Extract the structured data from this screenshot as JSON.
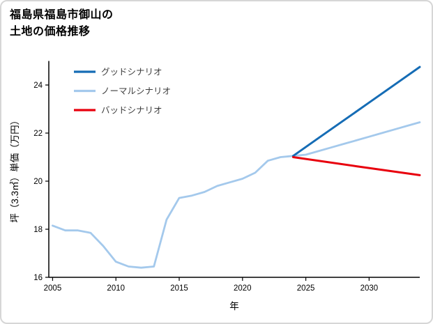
{
  "figure": {
    "title_line1": "福島県福島市御山の",
    "title_line2": "土地の価格推移"
  },
  "chart_data": {
    "type": "line",
    "title": "福島県福島市御山の土地の価格推移",
    "xlabel": "年",
    "ylabel": "坪（3.3㎡）単価（万円）",
    "xlim": [
      2004.7,
      2034
    ],
    "ylim": [
      16,
      25
    ],
    "xticks": [
      2005,
      2010,
      2015,
      2020,
      2025,
      2030
    ],
    "yticks": [
      16,
      18,
      20,
      22,
      24
    ],
    "grid": false,
    "legend": {
      "position": "upper-left",
      "entries": [
        "グッドシナリオ",
        "ノーマルシナリオ",
        "バッドシナリオ"
      ]
    },
    "series": [
      {
        "name": "グッドシナリオ",
        "color": "#156cb5",
        "width": 3,
        "x": [
          2024,
          2026,
          2028,
          2030,
          2032,
          2034
        ],
        "y": [
          21.05,
          21.79,
          22.53,
          23.27,
          24.01,
          24.75
        ]
      },
      {
        "name": "ノーマルシナリオ",
        "color": "#a4c9ec",
        "width": 2.8,
        "x": [
          2005,
          2006,
          2007,
          2008,
          2009,
          2010,
          2011,
          2012,
          2013,
          2014,
          2015,
          2016,
          2017,
          2018,
          2019,
          2020,
          2021,
          2022,
          2023,
          2024,
          2025,
          2026,
          2027,
          2028,
          2029,
          2030,
          2031,
          2032,
          2033,
          2034
        ],
        "y": [
          18.15,
          17.95,
          17.95,
          17.85,
          17.3,
          16.65,
          16.45,
          16.4,
          16.45,
          18.4,
          19.3,
          19.4,
          19.55,
          19.8,
          19.95,
          20.1,
          20.35,
          20.85,
          21.0,
          21.05,
          21.1,
          21.25,
          21.4,
          21.55,
          21.7,
          21.85,
          22.0,
          22.15,
          22.3,
          22.45
        ]
      },
      {
        "name": "バッドシナリオ",
        "color": "#e8000d",
        "width": 3,
        "x": [
          2024,
          2029,
          2034
        ],
        "y": [
          21.0,
          20.62,
          20.25
        ]
      }
    ]
  }
}
